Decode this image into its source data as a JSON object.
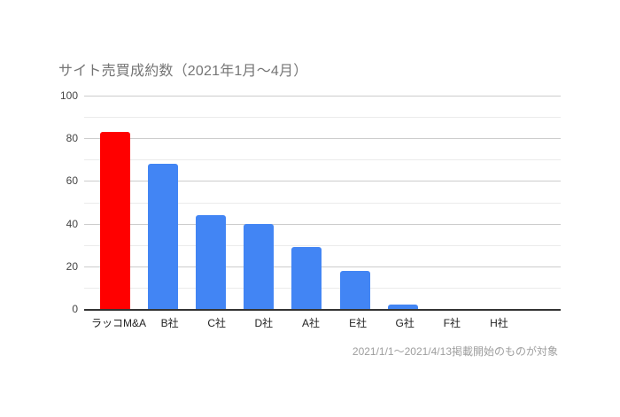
{
  "title": "サイト売買成約数（2021年1月～4月）",
  "footer": "2021/1/1～2021/4/13掲載開始のものが対象",
  "colors": {
    "highlight_bar": "#ff0000",
    "default_bar": "#4285f4",
    "grid_major": "#cccccc",
    "grid_minor": "#ebebeb",
    "axis_line": "#333333",
    "title_text": "#757575",
    "footer_text": "#9e9e9e",
    "tick_text": "#444444",
    "category_text": "#222222",
    "background": "#ffffff"
  },
  "chart_data": {
    "type": "bar",
    "title": "サイト売買成約数（2021年1月～4月）",
    "categories": [
      "ラッコM&A",
      "B社",
      "C社",
      "D社",
      "A社",
      "E社",
      "G社",
      "F社",
      "H社"
    ],
    "values": [
      83,
      68,
      44,
      40,
      29,
      18,
      2,
      0,
      0
    ],
    "bar_colors": [
      "#ff0000",
      "#4285f4",
      "#4285f4",
      "#4285f4",
      "#4285f4",
      "#4285f4",
      "#4285f4",
      "#4285f4",
      "#4285f4"
    ],
    "xlabel": "",
    "ylabel": "",
    "ylim": [
      0,
      100
    ],
    "yticks": [
      0,
      20,
      40,
      60,
      80,
      100
    ],
    "minor_gridlines": [
      10,
      30,
      50,
      70,
      90
    ],
    "grid": "horizontal, major every 20 labeled, minor every 10 unlabeled",
    "legend_position": "none",
    "annotation": "2021/1/1～2021/4/13掲載開始のものが対象"
  }
}
